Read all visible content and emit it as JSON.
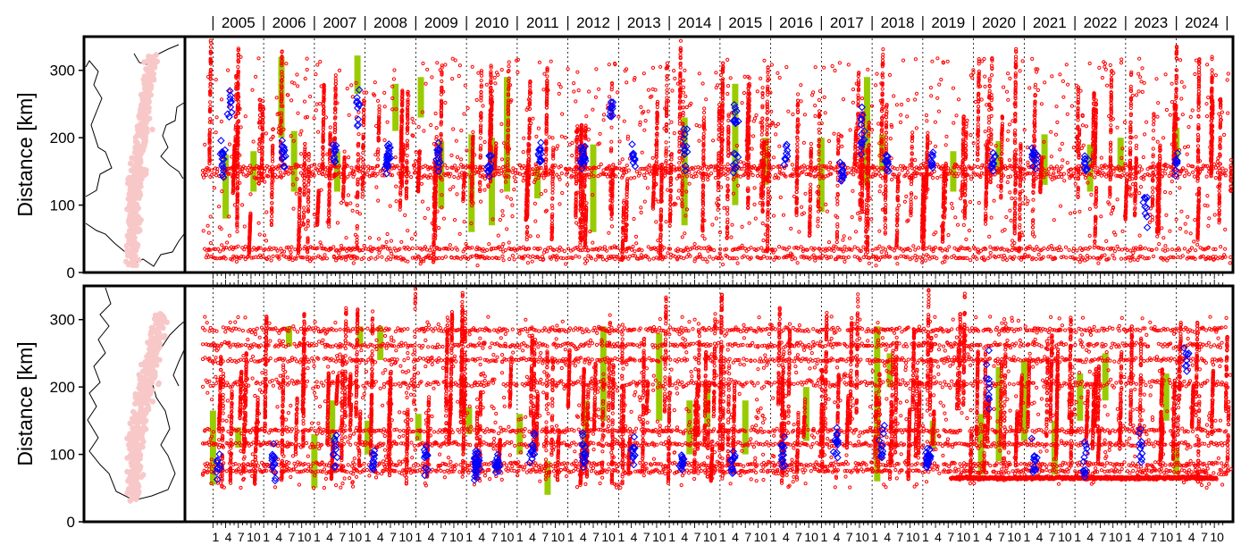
{
  "chart_data": {
    "type": "scatter",
    "years": [
      "2005",
      "2006",
      "2007",
      "2008",
      "2009",
      "2010",
      "2011",
      "2012",
      "2013",
      "2014",
      "2015",
      "2016",
      "2017",
      "2018",
      "2019",
      "2020",
      "2021",
      "2022",
      "2023",
      "2024"
    ],
    "month_tick_labels": [
      "1",
      "4",
      "7",
      "10"
    ],
    "ylabel": "Distance [km]",
    "ylim": [
      0,
      350
    ],
    "yticks": [
      "0",
      "100",
      "200",
      "300"
    ],
    "colors": {
      "tremor": "#ff0000",
      "vlf": "#0000ff",
      "sse": "#99cc00"
    },
    "panels": [
      {
        "seed": 11,
        "sse": [
          {
            "t": 2005.25,
            "y0": 80,
            "y1": 175
          },
          {
            "t": 2005.8,
            "y0": 120,
            "y1": 180
          },
          {
            "t": 2006.35,
            "y0": 200,
            "y1": 320
          },
          {
            "t": 2006.6,
            "y0": 120,
            "y1": 210
          },
          {
            "t": 2007.45,
            "y0": 120,
            "y1": 180
          },
          {
            "t": 2007.85,
            "y0": 265,
            "y1": 322
          },
          {
            "t": 2008.6,
            "y0": 210,
            "y1": 280
          },
          {
            "t": 2009.1,
            "y0": 230,
            "y1": 290
          },
          {
            "t": 2009.5,
            "y0": 95,
            "y1": 195
          },
          {
            "t": 2010.1,
            "y0": 60,
            "y1": 205
          },
          {
            "t": 2010.5,
            "y0": 70,
            "y1": 200
          },
          {
            "t": 2010.8,
            "y0": 120,
            "y1": 290
          },
          {
            "t": 2011.4,
            "y0": 110,
            "y1": 155
          },
          {
            "t": 2012.5,
            "y0": 60,
            "y1": 190
          },
          {
            "t": 2014.3,
            "y0": 70,
            "y1": 230
          },
          {
            "t": 2015.3,
            "y0": 100,
            "y1": 280
          },
          {
            "t": 2015.9,
            "y0": 130,
            "y1": 200
          },
          {
            "t": 2017.0,
            "y0": 90,
            "y1": 200
          },
          {
            "t": 2017.9,
            "y0": 130,
            "y1": 290
          },
          {
            "t": 2018.2,
            "y0": 150,
            "y1": 205
          },
          {
            "t": 2019.6,
            "y0": 120,
            "y1": 180
          },
          {
            "t": 2020.5,
            "y0": 145,
            "y1": 195
          },
          {
            "t": 2021.4,
            "y0": 130,
            "y1": 205
          },
          {
            "t": 2022.3,
            "y0": 120,
            "y1": 190
          },
          {
            "t": 2022.9,
            "y0": 150,
            "y1": 200
          },
          {
            "t": 2024.0,
            "y0": 170,
            "y1": 215
          }
        ],
        "bands": [
          {
            "y": 155,
            "spread": 4
          },
          {
            "y": 145,
            "spread": 5
          },
          {
            "y": 35,
            "spread": 3
          },
          {
            "y": 22,
            "spread": 3
          }
        ],
        "vlf_clusters": [
          {
            "t": 2005.35,
            "yc": 240,
            "sd": 20,
            "n": 10
          },
          {
            "t": 2005.2,
            "yc": 165,
            "sd": 20,
            "n": 16
          },
          {
            "t": 2006.4,
            "yc": 175,
            "sd": 20,
            "n": 14
          },
          {
            "t": 2007.4,
            "yc": 175,
            "sd": 12,
            "n": 10
          },
          {
            "t": 2007.85,
            "yc": 250,
            "sd": 30,
            "n": 10
          },
          {
            "t": 2008.45,
            "yc": 170,
            "sd": 20,
            "n": 24
          },
          {
            "t": 2009.45,
            "yc": 170,
            "sd": 20,
            "n": 12
          },
          {
            "t": 2010.45,
            "yc": 165,
            "sd": 20,
            "n": 12
          },
          {
            "t": 2011.45,
            "yc": 175,
            "sd": 12,
            "n": 14
          },
          {
            "t": 2012.3,
            "yc": 175,
            "sd": 15,
            "n": 18
          },
          {
            "t": 2012.85,
            "yc": 240,
            "sd": 15,
            "n": 10
          },
          {
            "t": 2013.3,
            "yc": 170,
            "sd": 15,
            "n": 10
          },
          {
            "t": 2014.3,
            "yc": 190,
            "sd": 30,
            "n": 12
          },
          {
            "t": 2015.3,
            "yc": 230,
            "sd": 20,
            "n": 10
          },
          {
            "t": 2015.3,
            "yc": 160,
            "sd": 15,
            "n": 8
          },
          {
            "t": 2016.3,
            "yc": 175,
            "sd": 15,
            "n": 10
          },
          {
            "t": 2017.4,
            "yc": 150,
            "sd": 12,
            "n": 12
          },
          {
            "t": 2017.8,
            "yc": 220,
            "sd": 40,
            "n": 14
          },
          {
            "t": 2018.3,
            "yc": 170,
            "sd": 15,
            "n": 12
          },
          {
            "t": 2019.2,
            "yc": 165,
            "sd": 15,
            "n": 10
          },
          {
            "t": 2020.4,
            "yc": 165,
            "sd": 15,
            "n": 10
          },
          {
            "t": 2021.2,
            "yc": 175,
            "sd": 15,
            "n": 14
          },
          {
            "t": 2022.2,
            "yc": 165,
            "sd": 15,
            "n": 10
          },
          {
            "t": 2023.4,
            "yc": 100,
            "sd": 30,
            "n": 10
          },
          {
            "t": 2024.0,
            "yc": 160,
            "sd": 15,
            "n": 8
          }
        ],
        "tremor_episodes_per_year": 6,
        "y_range": [
          10,
          320
        ]
      },
      {
        "seed": 29,
        "sse": [
          {
            "t": 2005.0,
            "y0": 55,
            "y1": 165
          },
          {
            "t": 2005.5,
            "y0": 110,
            "y1": 140
          },
          {
            "t": 2006.5,
            "y0": 260,
            "y1": 290
          },
          {
            "t": 2007.0,
            "y0": 50,
            "y1": 130
          },
          {
            "t": 2007.35,
            "y0": 120,
            "y1": 180
          },
          {
            "t": 2007.9,
            "y0": 260,
            "y1": 290
          },
          {
            "t": 2008.05,
            "y0": 100,
            "y1": 150
          },
          {
            "t": 2008.3,
            "y0": 240,
            "y1": 290
          },
          {
            "t": 2009.05,
            "y0": 120,
            "y1": 160
          },
          {
            "t": 2010.05,
            "y0": 130,
            "y1": 170
          },
          {
            "t": 2011.05,
            "y0": 100,
            "y1": 160
          },
          {
            "t": 2011.6,
            "y0": 40,
            "y1": 90
          },
          {
            "t": 2012.35,
            "y0": 100,
            "y1": 180
          },
          {
            "t": 2012.7,
            "y0": 150,
            "y1": 290
          },
          {
            "t": 2013.8,
            "y0": 150,
            "y1": 280
          },
          {
            "t": 2014.4,
            "y0": 100,
            "y1": 180
          },
          {
            "t": 2014.75,
            "y0": 140,
            "y1": 200
          },
          {
            "t": 2015.5,
            "y0": 100,
            "y1": 180
          },
          {
            "t": 2016.7,
            "y0": 120,
            "y1": 200
          },
          {
            "t": 2018.1,
            "y0": 60,
            "y1": 290
          },
          {
            "t": 2018.35,
            "y0": 200,
            "y1": 250
          },
          {
            "t": 2019.2,
            "y0": 110,
            "y1": 150
          },
          {
            "t": 2020.15,
            "y0": 70,
            "y1": 160
          },
          {
            "t": 2020.5,
            "y0": 90,
            "y1": 230
          },
          {
            "t": 2021.0,
            "y0": 120,
            "y1": 240
          },
          {
            "t": 2021.6,
            "y0": 70,
            "y1": 150
          },
          {
            "t": 2022.1,
            "y0": 150,
            "y1": 220
          },
          {
            "t": 2022.6,
            "y0": 180,
            "y1": 250
          },
          {
            "t": 2023.8,
            "y0": 150,
            "y1": 220
          },
          {
            "t": 2024.0,
            "y0": 70,
            "y1": 110
          }
        ],
        "bands": [
          {
            "y": 285,
            "spread": 3
          },
          {
            "y": 262,
            "spread": 3
          },
          {
            "y": 240,
            "spread": 3
          },
          {
            "y": 205,
            "spread": 5
          },
          {
            "y": 135,
            "spread": 3
          },
          {
            "y": 115,
            "spread": 3
          },
          {
            "y": 85,
            "spread": 3
          },
          {
            "y": 75,
            "spread": 3
          }
        ],
        "baseline": {
          "t0": 2019.55,
          "t1": 2024.8,
          "y": 65,
          "spread": 2
        },
        "vlf_clusters": [
          {
            "t": 2005.1,
            "yc": 85,
            "sd": 15,
            "n": 10
          },
          {
            "t": 2006.2,
            "yc": 95,
            "sd": 25,
            "n": 14
          },
          {
            "t": 2007.4,
            "yc": 100,
            "sd": 25,
            "n": 10
          },
          {
            "t": 2008.15,
            "yc": 95,
            "sd": 20,
            "n": 12
          },
          {
            "t": 2009.2,
            "yc": 90,
            "sd": 20,
            "n": 12
          },
          {
            "t": 2010.2,
            "yc": 85,
            "sd": 18,
            "n": 40
          },
          {
            "t": 2010.6,
            "yc": 85,
            "sd": 18,
            "n": 16
          },
          {
            "t": 2011.3,
            "yc": 110,
            "sd": 25,
            "n": 14
          },
          {
            "t": 2012.3,
            "yc": 105,
            "sd": 20,
            "n": 14
          },
          {
            "t": 2013.3,
            "yc": 105,
            "sd": 20,
            "n": 12
          },
          {
            "t": 2014.25,
            "yc": 85,
            "sd": 20,
            "n": 14
          },
          {
            "t": 2015.25,
            "yc": 95,
            "sd": 20,
            "n": 12
          },
          {
            "t": 2016.25,
            "yc": 100,
            "sd": 20,
            "n": 14
          },
          {
            "t": 2017.3,
            "yc": 110,
            "sd": 25,
            "n": 14
          },
          {
            "t": 2018.2,
            "yc": 110,
            "sd": 25,
            "n": 12
          },
          {
            "t": 2019.1,
            "yc": 95,
            "sd": 20,
            "n": 30
          },
          {
            "t": 2020.3,
            "yc": 200,
            "sd": 40,
            "n": 10
          },
          {
            "t": 2021.2,
            "yc": 90,
            "sd": 25,
            "n": 12
          },
          {
            "t": 2022.2,
            "yc": 90,
            "sd": 25,
            "n": 12
          },
          {
            "t": 2023.3,
            "yc": 110,
            "sd": 30,
            "n": 10
          },
          {
            "t": 2024.2,
            "yc": 240,
            "sd": 20,
            "n": 8
          }
        ],
        "tremor_episodes_per_year": 7,
        "y_range": [
          50,
          305
        ]
      }
    ]
  }
}
